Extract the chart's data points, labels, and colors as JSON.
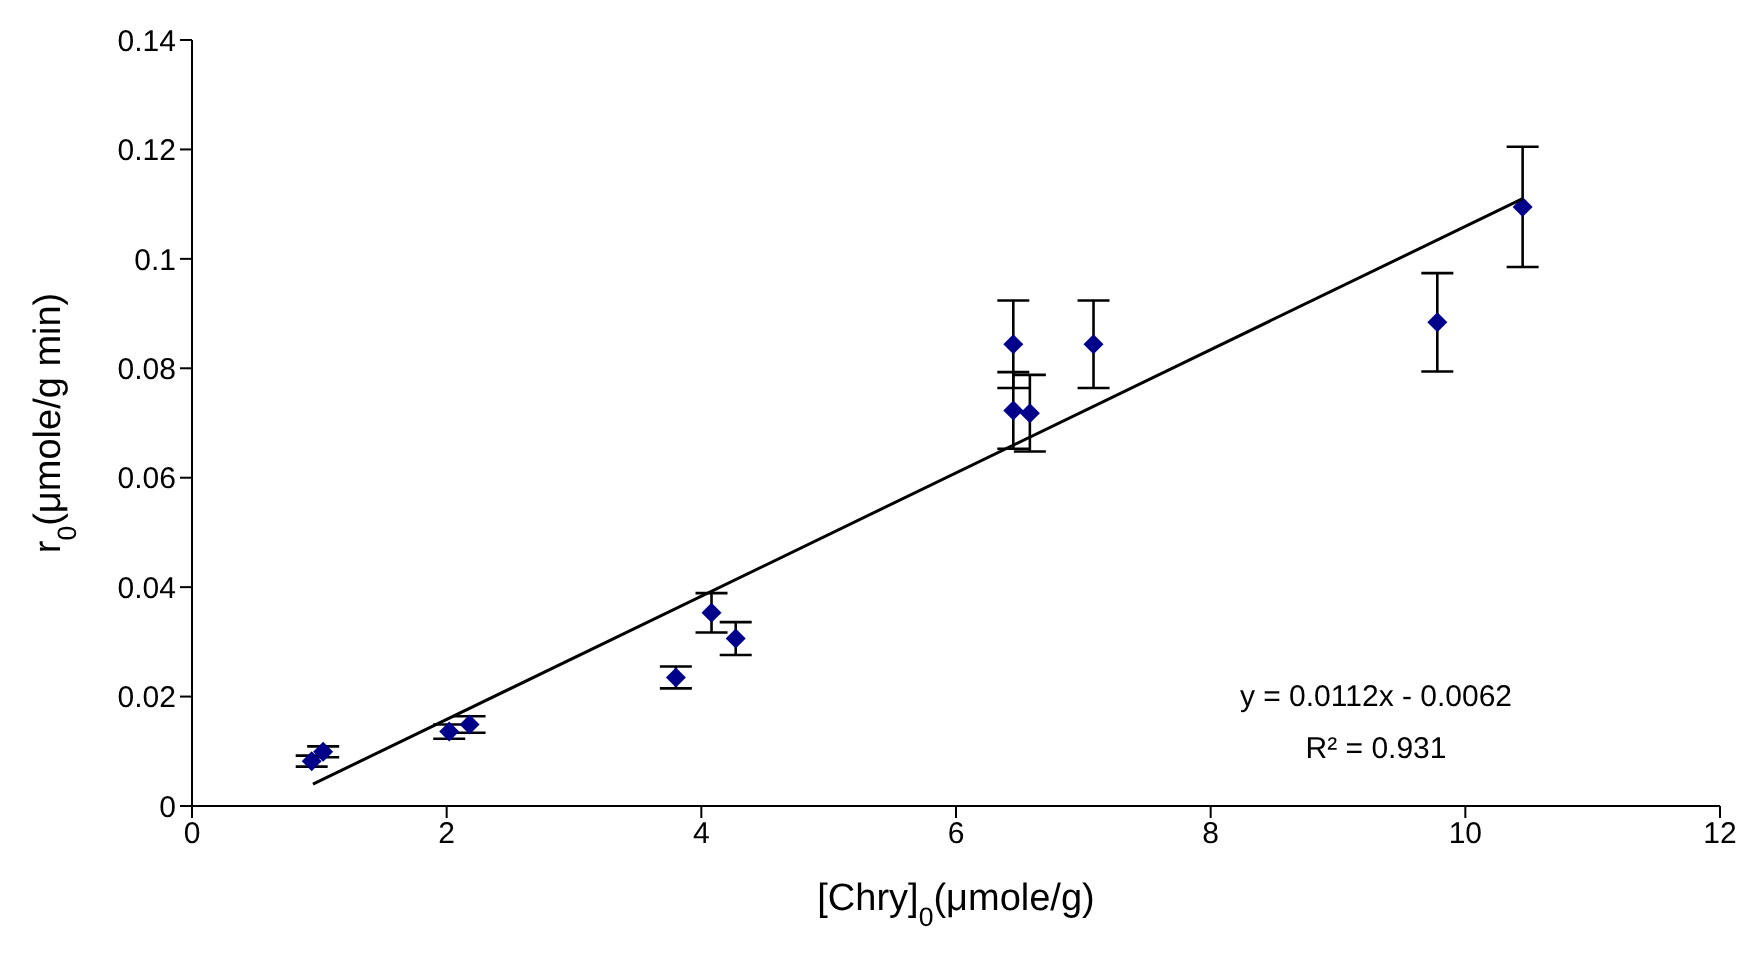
{
  "chart_data": {
    "type": "scatter",
    "xlabel": "[Chry]$_{0}$(μmole/g)",
    "ylabel": "r$_{0}$(μmole/g min)",
    "xlim": [
      0,
      12
    ],
    "xticks": [
      0,
      2,
      4,
      6,
      8,
      10,
      12
    ],
    "ylim": [
      0,
      0.14
    ],
    "yticks": [
      0,
      0.02,
      0.04,
      0.06,
      0.08,
      0.1,
      0.12,
      0.14
    ],
    "series": [
      {
        "marker": "diamond",
        "color": "#00008b",
        "x": [
          0.94,
          1.03,
          2.02,
          2.18,
          3.8,
          4.08,
          4.27,
          6.45,
          6.45,
          6.58,
          7.08,
          9.78,
          10.45
        ],
        "values": [
          0.0082,
          0.0099,
          0.0136,
          0.0149,
          0.0235,
          0.0353,
          0.0306,
          0.0844,
          0.0723,
          0.0718,
          0.0844,
          0.0884,
          0.1095
        ],
        "errors": [
          0.001,
          0.001,
          0.0013,
          0.0015,
          0.002,
          0.0036,
          0.003,
          0.008,
          0.007,
          0.007,
          0.008,
          0.009,
          0.011
        ]
      },
      {
        "type": "line",
        "marker": "none",
        "line_style": "solid",
        "color": "#000000",
        "x": [
          0.95,
          10.45
        ],
        "values": [
          0.004,
          0.111
        ]
      }
    ],
    "annotations": [
      "y = 0.0112x - 0.0062",
      "R² = 0.931"
    ]
  }
}
